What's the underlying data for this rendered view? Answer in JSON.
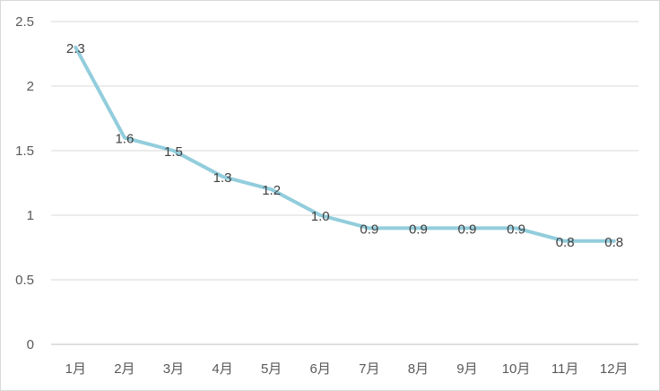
{
  "chart_data": {
    "type": "line",
    "title": "",
    "xlabel": "",
    "ylabel": "",
    "categories": [
      "1月",
      "2月",
      "3月",
      "4月",
      "5月",
      "6月",
      "7月",
      "8月",
      "9月",
      "10月",
      "11月",
      "12月"
    ],
    "series": [
      {
        "values": [
          2.3,
          1.6,
          1.5,
          1.3,
          1.2,
          1.0,
          0.9,
          0.9,
          0.9,
          0.9,
          0.8,
          0.8
        ],
        "labels": [
          "2.3",
          "1.6",
          "1.5",
          "1.3",
          "1.2",
          "1.0",
          "0.9",
          "0.9",
          "0.9",
          "0.9",
          "0.8",
          "0.8"
        ]
      }
    ],
    "ylim": [
      0,
      2.5
    ],
    "yticks": [
      "0",
      "0.5",
      "1",
      "1.5",
      "2",
      "2.5"
    ],
    "grid": true,
    "legend": "none",
    "colors": {
      "line": "#92cddc",
      "grid": "#d9d9d9",
      "axis": "#bfbfbf"
    }
  }
}
